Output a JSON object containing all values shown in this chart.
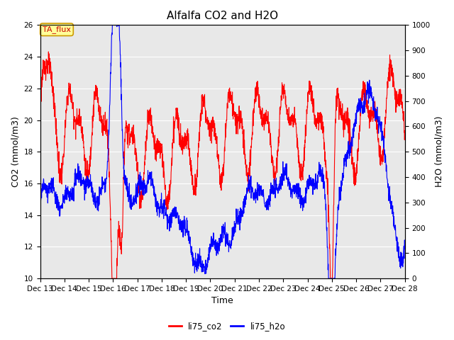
{
  "title": "Alfalfa CO2 and H2O",
  "xlabel": "Time",
  "ylabel_left": "CO2 (mmol/m3)",
  "ylabel_right": "H2O (mmol/m3)",
  "ylim_left": [
    10,
    26
  ],
  "ylim_right": [
    0,
    1000
  ],
  "yticks_left": [
    10,
    12,
    14,
    16,
    18,
    20,
    22,
    24,
    26
  ],
  "yticks_right": [
    0,
    100,
    200,
    300,
    400,
    500,
    600,
    700,
    800,
    900,
    1000
  ],
  "color_co2": "#FF0000",
  "color_h2o": "#0000FF",
  "bg_color": "#E8E8E8",
  "annotation_text": "TA_flux",
  "annotation_bg": "#FFFF99",
  "annotation_edgecolor": "#CC9900",
  "title_fontsize": 11,
  "axis_fontsize": 9,
  "tick_fontsize": 7.5,
  "linewidth": 0.8
}
